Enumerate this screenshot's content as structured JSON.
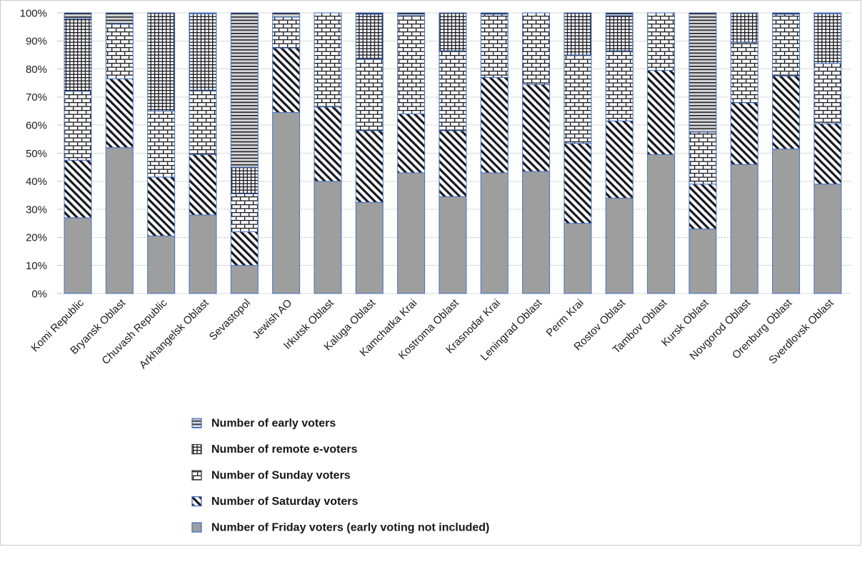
{
  "chart_data": {
    "type": "bar",
    "stacking": "percent",
    "title": "",
    "xlabel": "",
    "ylabel": "",
    "ylim": [
      0,
      100
    ],
    "grid": true,
    "legend_position": "bottom-left",
    "y_tick_labels": [
      "0%",
      "10%",
      "20%",
      "30%",
      "40%",
      "50%",
      "60%",
      "70%",
      "80%",
      "90%",
      "100%"
    ],
    "categories": [
      "Komi Republic",
      "Bryansk Oblast",
      "Chuvash Republic",
      "Arkhangelsk Oblast",
      "Sevastopol",
      "Jewish AO",
      "Irkutsk Oblast",
      "Kaluga Oblast",
      "Kamchatka Krai",
      "Kostroma Oblast",
      "Krasnodar Krai",
      "Leningrad Oblast",
      "Perm Krai",
      "Rostov Oblast",
      "Tambov Oblast",
      "Kursk Oblast",
      "Novgorod Oblast",
      "Orenburg Oblast",
      "Sverdlovsk Oblast"
    ],
    "series": [
      {
        "name": "Number of Friday voters (early voting not included)",
        "pattern": "solid-gray",
        "values": [
          27,
          52,
          20.5,
          28,
          10,
          64.5,
          40,
          32.5,
          43,
          34.5,
          43,
          43.5,
          25,
          34,
          49.5,
          23,
          46,
          51.5,
          39
        ]
      },
      {
        "name": "Number of Saturday voters",
        "pattern": "diagonal-stripes",
        "values": [
          20.5,
          24.5,
          21,
          21.5,
          12,
          23,
          26.5,
          25.5,
          21,
          23.5,
          34,
          31,
          28.5,
          27.5,
          30,
          16,
          22,
          26,
          21.5
        ]
      },
      {
        "name": "Number of Sunday voters",
        "pattern": "brick",
        "values": [
          24.5,
          19.5,
          23.5,
          23,
          13.5,
          11,
          33.5,
          25.5,
          35,
          28.5,
          22.5,
          25.5,
          31.5,
          25,
          20.5,
          18.5,
          21.5,
          22,
          21.5
        ]
      },
      {
        "name": "Number of remote e-voters",
        "pattern": "small-grid",
        "values": [
          26,
          0,
          35,
          27.2,
          9.5,
          0,
          0,
          16,
          0,
          13.5,
          0,
          0,
          15,
          12.5,
          0,
          0,
          10.5,
          0,
          17.7
        ]
      },
      {
        "name": "Number of early voters",
        "pattern": "horizontal-lines",
        "values": [
          2,
          4,
          0,
          0.3,
          55,
          1.5,
          0,
          0.5,
          1,
          0,
          0.5,
          0,
          0,
          1,
          0,
          42.5,
          0,
          0.5,
          0.3
        ]
      }
    ],
    "legend": [
      {
        "label": "Number of early voters",
        "pattern": "horizontal-lines",
        "swatch_border": "#4472C4"
      },
      {
        "label": "Number of remote e-voters",
        "pattern": "small-grid",
        "swatch_border": "#3B3B3B"
      },
      {
        "label": "Number of Sunday voters",
        "pattern": "brick",
        "swatch_border": "#3B3B3B"
      },
      {
        "label": "Number of Saturday voters",
        "pattern": "diagonal-stripes",
        "swatch_border": "#4472C4"
      },
      {
        "label": "Number of Friday voters (early voting not included)",
        "pattern": "solid-gray",
        "swatch_border": "#4472C4"
      }
    ]
  },
  "colors": {
    "segment_border": "#4472C4",
    "pattern_ink": "#17171E",
    "pattern_ink_soft": "#9B9B9B",
    "friday_gray": "#9E9E9E",
    "gridline": "#D9D9D9",
    "gridline_dotted": "#A9A9A9",
    "tick_mark": "#BFBFBF",
    "axis_text": "#1C1C1C",
    "legend_text": "#161616",
    "chart_border": "#C9C9C9",
    "background": "#FFFFFF"
  }
}
